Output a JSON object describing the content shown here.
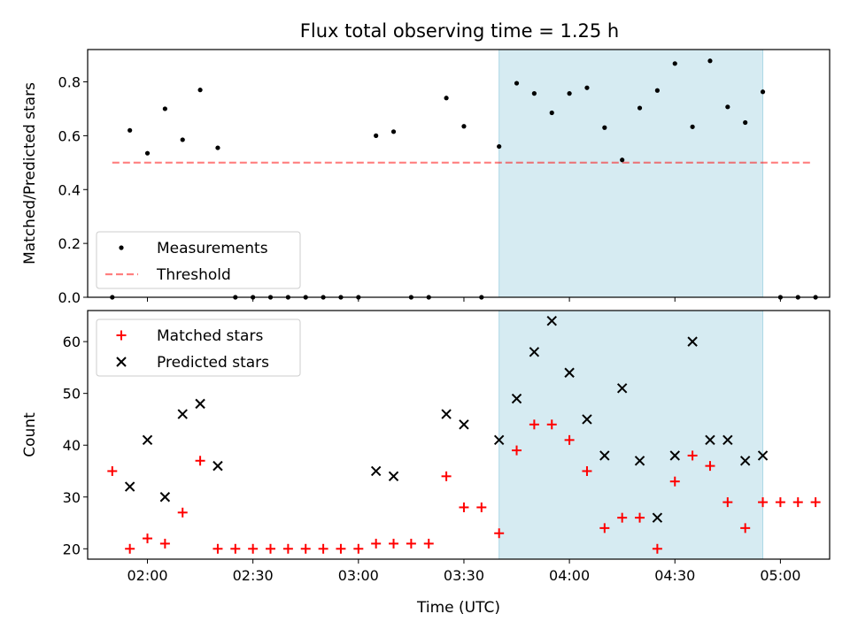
{
  "title": "Flux total observing time = 1.25 h",
  "colors": {
    "highlight": "#add8e6",
    "threshold": "#ff0000",
    "measurement": "#000000",
    "matched": "#ff0000",
    "predicted": "#000000"
  },
  "chart_data": [
    {
      "type": "scatter",
      "ylabel": "Matched/Predicted stars",
      "xlabel": "",
      "ylim": [
        0,
        0.92
      ],
      "yticks": [
        0.0,
        0.2,
        0.4,
        0.6,
        0.8
      ],
      "ytick_labels": [
        "0.0",
        "0.2",
        "0.4",
        "0.6",
        "0.8"
      ],
      "xlim": [
        "01:43",
        "05:14"
      ],
      "xticks": [
        "02:00",
        "02:30",
        "03:00",
        "03:30",
        "04:00",
        "04:30",
        "05:00"
      ],
      "show_x_tick_labels": false,
      "highlight": {
        "start": "03:40",
        "end": "04:55"
      },
      "legend": {
        "placement": "lower-left",
        "entries": [
          {
            "label": "Measurements",
            "marker": "dot"
          },
          {
            "label": "Threshold",
            "marker": "dash"
          }
        ]
      },
      "threshold": {
        "label": "Threshold",
        "value": 0.5,
        "x_start": "01:50",
        "x_end": "05:09"
      },
      "series": [
        {
          "label": "Measurements",
          "marker": "dot",
          "points": [
            {
              "x": "01:50",
              "y": 0.0
            },
            {
              "x": "01:55",
              "y": 0.62
            },
            {
              "x": "02:00",
              "y": 0.535
            },
            {
              "x": "02:05",
              "y": 0.7
            },
            {
              "x": "02:10",
              "y": 0.585
            },
            {
              "x": "02:15",
              "y": 0.77
            },
            {
              "x": "02:20",
              "y": 0.555
            },
            {
              "x": "02:25",
              "y": 0.0
            },
            {
              "x": "02:30",
              "y": 0.0
            },
            {
              "x": "02:35",
              "y": 0.0
            },
            {
              "x": "02:40",
              "y": 0.0
            },
            {
              "x": "02:45",
              "y": 0.0
            },
            {
              "x": "02:50",
              "y": 0.0
            },
            {
              "x": "02:55",
              "y": 0.0
            },
            {
              "x": "03:00",
              "y": 0.0
            },
            {
              "x": "03:05",
              "y": 0.6
            },
            {
              "x": "03:10",
              "y": 0.615
            },
            {
              "x": "03:15",
              "y": 0.0
            },
            {
              "x": "03:20",
              "y": 0.0
            },
            {
              "x": "03:25",
              "y": 0.74
            },
            {
              "x": "03:30",
              "y": 0.635
            },
            {
              "x": "03:35",
              "y": 0.0
            },
            {
              "x": "03:40",
              "y": 0.56
            },
            {
              "x": "03:45",
              "y": 0.795
            },
            {
              "x": "03:50",
              "y": 0.757
            },
            {
              "x": "03:55",
              "y": 0.685
            },
            {
              "x": "04:00",
              "y": 0.757
            },
            {
              "x": "04:05",
              "y": 0.778
            },
            {
              "x": "04:10",
              "y": 0.63
            },
            {
              "x": "04:15",
              "y": 0.51
            },
            {
              "x": "04:20",
              "y": 0.703
            },
            {
              "x": "04:25",
              "y": 0.768
            },
            {
              "x": "04:30",
              "y": 0.868
            },
            {
              "x": "04:35",
              "y": 0.633
            },
            {
              "x": "04:40",
              "y": 0.878
            },
            {
              "x": "04:45",
              "y": 0.707
            },
            {
              "x": "04:50",
              "y": 0.649
            },
            {
              "x": "04:55",
              "y": 0.763
            },
            {
              "x": "05:00",
              "y": 0.0
            },
            {
              "x": "05:05",
              "y": 0.0
            },
            {
              "x": "05:10",
              "y": 0.0
            }
          ]
        }
      ]
    },
    {
      "type": "scatter",
      "ylabel": "Count",
      "xlabel": "Time (UTC)",
      "ylim": [
        18,
        66
      ],
      "yticks": [
        20,
        30,
        40,
        50,
        60
      ],
      "ytick_labels": [
        "20",
        "30",
        "40",
        "50",
        "60"
      ],
      "xlim": [
        "01:43",
        "05:14"
      ],
      "xticks": [
        "02:00",
        "02:30",
        "03:00",
        "03:30",
        "04:00",
        "04:30",
        "05:00"
      ],
      "xtick_labels": [
        "02:00",
        "02:30",
        "03:00",
        "03:30",
        "04:00",
        "04:30",
        "05:00"
      ],
      "show_x_tick_labels": true,
      "highlight": {
        "start": "03:40",
        "end": "04:55"
      },
      "legend": {
        "placement": "upper-left",
        "entries": [
          {
            "label": "Matched stars",
            "marker": "plus"
          },
          {
            "label": "Predicted stars",
            "marker": "cross"
          }
        ]
      },
      "series": [
        {
          "label": "Matched stars",
          "marker": "plus",
          "points": [
            {
              "x": "01:50",
              "y": 35
            },
            {
              "x": "01:55",
              "y": 20
            },
            {
              "x": "02:00",
              "y": 22
            },
            {
              "x": "02:05",
              "y": 21
            },
            {
              "x": "02:10",
              "y": 27
            },
            {
              "x": "02:15",
              "y": 37
            },
            {
              "x": "02:20",
              "y": 20
            },
            {
              "x": "02:25",
              "y": 20
            },
            {
              "x": "02:30",
              "y": 20
            },
            {
              "x": "02:35",
              "y": 20
            },
            {
              "x": "02:40",
              "y": 20
            },
            {
              "x": "02:45",
              "y": 20
            },
            {
              "x": "02:50",
              "y": 20
            },
            {
              "x": "02:55",
              "y": 20
            },
            {
              "x": "03:00",
              "y": 20
            },
            {
              "x": "03:05",
              "y": 21
            },
            {
              "x": "03:10",
              "y": 21
            },
            {
              "x": "03:15",
              "y": 21
            },
            {
              "x": "03:20",
              "y": 21
            },
            {
              "x": "03:25",
              "y": 34
            },
            {
              "x": "03:30",
              "y": 28
            },
            {
              "x": "03:35",
              "y": 28
            },
            {
              "x": "03:40",
              "y": 23
            },
            {
              "x": "03:45",
              "y": 39
            },
            {
              "x": "03:50",
              "y": 44
            },
            {
              "x": "03:55",
              "y": 44
            },
            {
              "x": "04:00",
              "y": 41
            },
            {
              "x": "04:05",
              "y": 35
            },
            {
              "x": "04:10",
              "y": 24
            },
            {
              "x": "04:15",
              "y": 26
            },
            {
              "x": "04:20",
              "y": 26
            },
            {
              "x": "04:25",
              "y": 20
            },
            {
              "x": "04:30",
              "y": 33
            },
            {
              "x": "04:35",
              "y": 38
            },
            {
              "x": "04:40",
              "y": 36
            },
            {
              "x": "04:45",
              "y": 29
            },
            {
              "x": "04:50",
              "y": 24
            },
            {
              "x": "04:55",
              "y": 29
            },
            {
              "x": "05:00",
              "y": 29
            },
            {
              "x": "05:05",
              "y": 29
            },
            {
              "x": "05:10",
              "y": 29
            }
          ]
        },
        {
          "label": "Predicted stars",
          "marker": "cross",
          "points": [
            {
              "x": "01:55",
              "y": 32
            },
            {
              "x": "02:00",
              "y": 41
            },
            {
              "x": "02:05",
              "y": 30
            },
            {
              "x": "02:10",
              "y": 46
            },
            {
              "x": "02:15",
              "y": 48
            },
            {
              "x": "02:20",
              "y": 36
            },
            {
              "x": "03:05",
              "y": 35
            },
            {
              "x": "03:10",
              "y": 34
            },
            {
              "x": "03:25",
              "y": 46
            },
            {
              "x": "03:30",
              "y": 44
            },
            {
              "x": "03:40",
              "y": 41
            },
            {
              "x": "03:45",
              "y": 49
            },
            {
              "x": "03:50",
              "y": 58
            },
            {
              "x": "03:55",
              "y": 64
            },
            {
              "x": "04:00",
              "y": 54
            },
            {
              "x": "04:05",
              "y": 45
            },
            {
              "x": "04:10",
              "y": 38
            },
            {
              "x": "04:15",
              "y": 51
            },
            {
              "x": "04:20",
              "y": 37
            },
            {
              "x": "04:25",
              "y": 26
            },
            {
              "x": "04:30",
              "y": 38
            },
            {
              "x": "04:35",
              "y": 60
            },
            {
              "x": "04:40",
              "y": 41
            },
            {
              "x": "04:45",
              "y": 41
            },
            {
              "x": "04:50",
              "y": 37
            },
            {
              "x": "04:55",
              "y": 38
            }
          ]
        }
      ]
    }
  ]
}
